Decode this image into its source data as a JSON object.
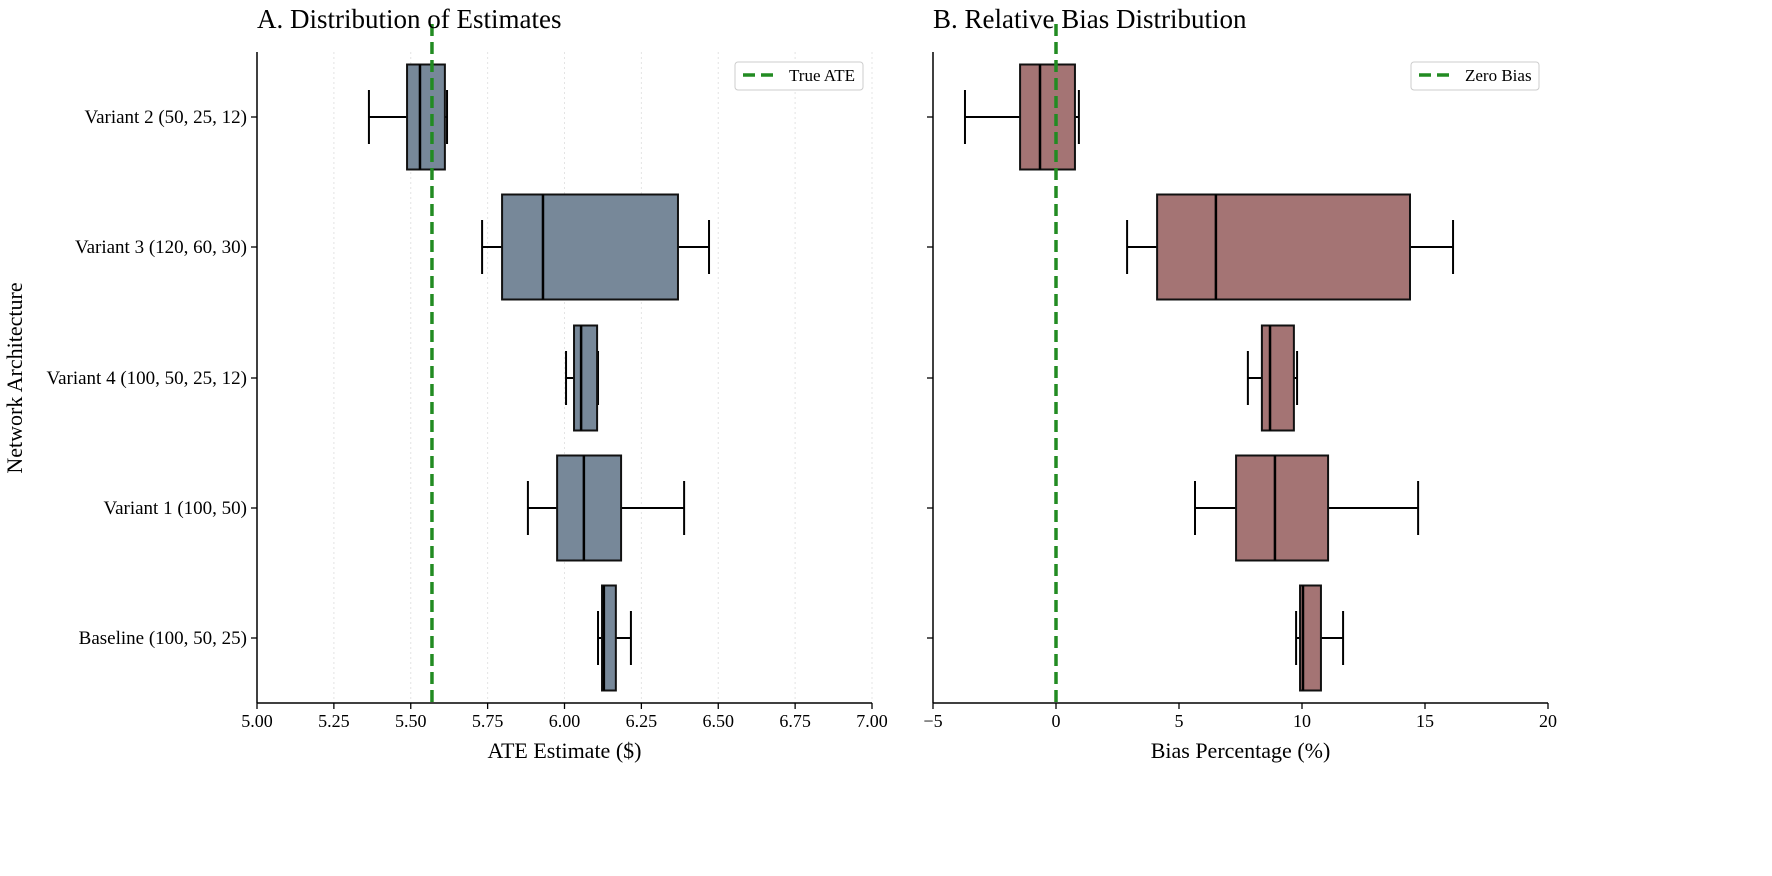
{
  "chart_data": [
    {
      "type": "box",
      "orientation": "horizontal",
      "title": "A. Distribution of Estimates",
      "xlabel": "ATE Estimate ($)",
      "ylabel": "Network Architecture",
      "xlim": [
        5.0,
        7.0
      ],
      "xticks": [
        "5.00",
        "5.25",
        "5.50",
        "5.75",
        "6.00",
        "6.25",
        "6.50",
        "6.75",
        "7.00"
      ],
      "grid": "x dotted",
      "box_color": "#778899",
      "categories": [
        "Variant 2 (50, 25, 12)",
        "Variant 3 (120, 60, 30)",
        "Variant 4 (100, 50, 25, 12)",
        "Variant 1 (100, 50)",
        "Baseline (100, 50, 25)"
      ],
      "boxes": [
        {
          "whislo": 5.364,
          "q1": 5.488,
          "med": 5.53,
          "q3": 5.611,
          "whishi": 5.618
        },
        {
          "whislo": 5.732,
          "q1": 5.797,
          "med": 5.93,
          "q3": 6.369,
          "whishi": 6.47
        },
        {
          "whislo": 6.005,
          "q1": 6.031,
          "med": 6.054,
          "q3": 6.106,
          "whishi": 6.109
        },
        {
          "whislo": 5.881,
          "q1": 5.976,
          "med": 6.063,
          "q3": 6.184,
          "whishi": 6.389
        },
        {
          "whislo": 6.109,
          "q1": 6.122,
          "med": 6.128,
          "q3": 6.167,
          "whishi": 6.216
        }
      ],
      "reference_line": {
        "value": 5.569,
        "label": "True ATE",
        "color": "#228B22",
        "style": "dashed"
      },
      "legend_placement": "top-right"
    },
    {
      "type": "box",
      "orientation": "horizontal",
      "title": "B. Relative Bias Distribution",
      "xlabel": "Bias Percentage (%)",
      "ylabel": "",
      "xlim": [
        -5,
        20
      ],
      "xticks": [
        "−5",
        "0",
        "5",
        "10",
        "15",
        "20"
      ],
      "grid": "none",
      "box_color": "#A47474",
      "categories": [
        "Variant 2 (50, 25, 12)",
        "Variant 3 (120, 60, 30)",
        "Variant 4 (100, 50, 25, 12)",
        "Variant 1 (100, 50)",
        "Baseline (100, 50, 25)"
      ],
      "boxes": [
        {
          "whislo": -3.7,
          "q1": -1.46,
          "med": -0.65,
          "q3": 0.77,
          "whishi": 0.93
        },
        {
          "whislo": 2.89,
          "q1": 4.11,
          "med": 6.5,
          "q3": 14.39,
          "whishi": 16.14
        },
        {
          "whislo": 7.8,
          "q1": 8.37,
          "med": 8.7,
          "q3": 9.67,
          "whishi": 9.8
        },
        {
          "whislo": 5.65,
          "q1": 7.32,
          "med": 8.9,
          "q3": 11.06,
          "whishi": 14.72
        },
        {
          "whislo": 9.76,
          "q1": 9.92,
          "med": 10.04,
          "q3": 10.77,
          "whishi": 11.67
        }
      ],
      "reference_line": {
        "value": 0,
        "label": "Zero Bias",
        "color": "#228B22",
        "style": "dashed"
      },
      "legend_placement": "top-right"
    }
  ]
}
